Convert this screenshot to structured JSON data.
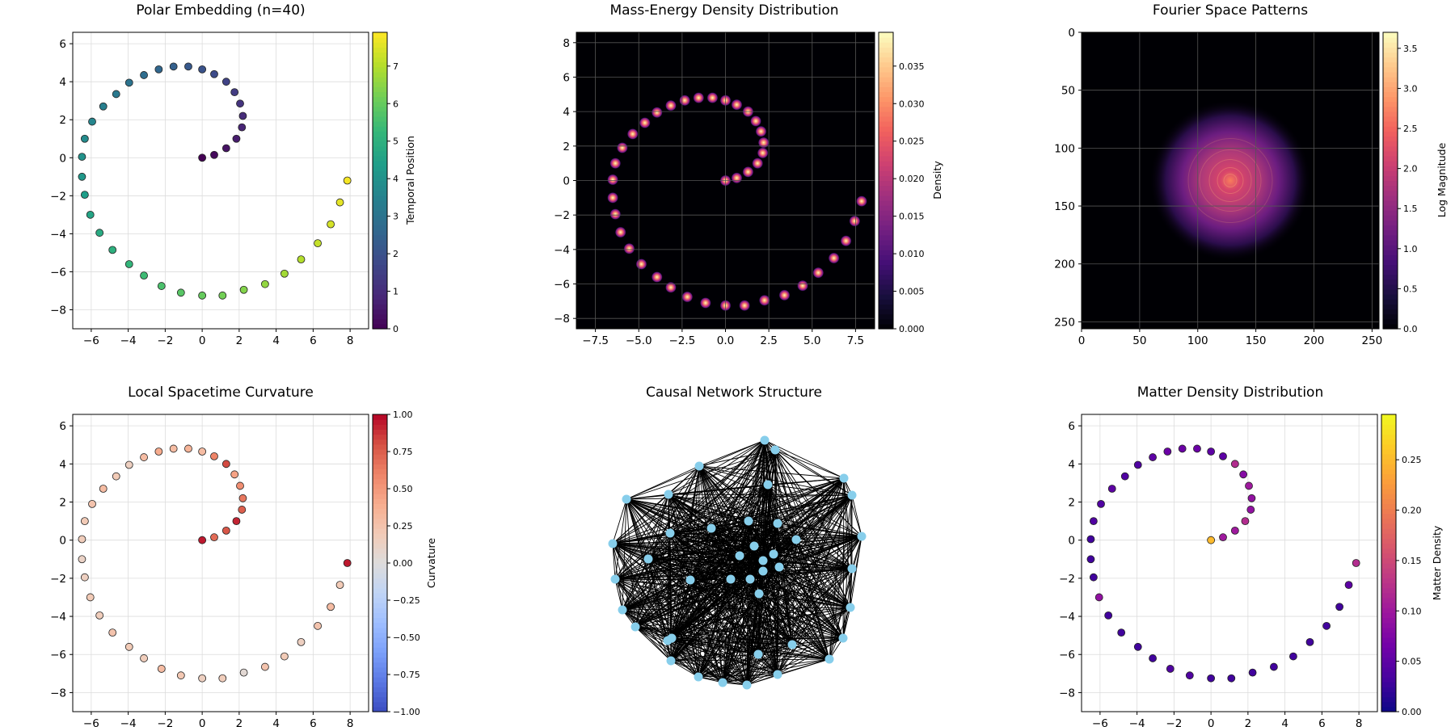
{
  "chart_data": [
    {
      "id": "polar",
      "type": "scatter",
      "title": "Polar Embedding (n=40)",
      "xlim": [
        -7,
        9
      ],
      "ylim": [
        -9,
        6.6
      ],
      "xticks": [
        -6,
        -4,
        -2,
        0,
        2,
        4,
        6,
        8
      ],
      "yticks": [
        -8,
        -6,
        -4,
        -2,
        0,
        2,
        4,
        6
      ],
      "grid": true,
      "colormap": "viridis",
      "colorbar": {
        "label": "Temporal Position",
        "range": [
          0,
          7.9
        ],
        "ticks": [
          0,
          1,
          2,
          3,
          4,
          5,
          6,
          7
        ]
      },
      "values_source": "temporal",
      "marker_size": 4.5
    },
    {
      "id": "massenergy",
      "type": "heatmap",
      "title": "Mass-Energy Density Distribution",
      "xlim": [
        -8.6,
        8.6
      ],
      "ylim": [
        -8.6,
        8.6
      ],
      "xticks": [
        -7.5,
        -5.0,
        -2.5,
        0.0,
        2.5,
        5.0,
        7.5
      ],
      "xtick_labels": [
        "−7.5",
        "−5.0",
        "−2.5",
        "0.0",
        "2.5",
        "5.0",
        "7.5"
      ],
      "yticks": [
        -8,
        -6,
        -4,
        -2,
        0,
        2,
        4,
        6,
        8
      ],
      "grid": true,
      "colormap": "magma",
      "colorbar": {
        "label": "Density",
        "range": [
          0,
          0.0395
        ],
        "ticks": [
          0,
          0.005,
          0.01,
          0.015,
          0.02,
          0.025,
          0.03,
          0.035
        ],
        "tick_labels": [
          "0.000",
          "0.005",
          "0.010",
          "0.015",
          "0.020",
          "0.025",
          "0.030",
          "0.035"
        ]
      }
    },
    {
      "id": "fourier",
      "type": "heatmap",
      "title": "Fourier Space Patterns",
      "xlim": [
        0,
        256
      ],
      "ylim": [
        256,
        0
      ],
      "xticks": [
        0,
        50,
        100,
        150,
        200,
        250
      ],
      "yticks": [
        0,
        50,
        100,
        150,
        200,
        250
      ],
      "grid": true,
      "colormap": "magma",
      "center": [
        128,
        128
      ],
      "colorbar": {
        "label": "Log Magnitude",
        "range": [
          0,
          3.7
        ],
        "ticks": [
          0,
          0.5,
          1.0,
          1.5,
          2.0,
          2.5,
          3.0,
          3.5
        ],
        "tick_labels": [
          "0.0",
          "0.5",
          "1.0",
          "1.5",
          "2.0",
          "2.5",
          "3.0",
          "3.5"
        ]
      }
    },
    {
      "id": "curvature",
      "type": "scatter",
      "title": "Local Spacetime Curvature",
      "xlim": [
        -7,
        9
      ],
      "ylim": [
        -9,
        6.6
      ],
      "xticks": [
        -6,
        -4,
        -2,
        0,
        2,
        4,
        6,
        8
      ],
      "yticks": [
        -8,
        -6,
        -4,
        -2,
        0,
        2,
        4,
        6
      ],
      "grid": true,
      "colormap": "coolwarm",
      "colorbar": {
        "label": "Curvature",
        "range": [
          -1,
          1
        ],
        "ticks": [
          -1,
          -0.75,
          -0.5,
          -0.25,
          0,
          0.25,
          0.5,
          0.75,
          1
        ],
        "tick_labels": [
          "−1.00",
          "−0.75",
          "−0.50",
          "−0.25",
          "0.00",
          "0.25",
          "0.50",
          "0.75",
          "1.00"
        ]
      },
      "values_source": "curvature",
      "marker_size": 4.5
    },
    {
      "id": "network",
      "type": "network",
      "title": "Causal Network Structure",
      "node_color": "#87ceeb",
      "edge_color": "#000000"
    },
    {
      "id": "matter",
      "type": "scatter",
      "title": "Matter Density Distribution",
      "xlim": [
        -7,
        9
      ],
      "ylim": [
        -9,
        6.6
      ],
      "xticks": [
        -6,
        -4,
        -2,
        0,
        2,
        4,
        6,
        8
      ],
      "yticks": [
        -8,
        -6,
        -4,
        -2,
        0,
        2,
        4,
        6
      ],
      "grid": true,
      "colormap": "plasma",
      "colorbar": {
        "label": "Matter Density",
        "range": [
          0,
          0.295
        ],
        "ticks": [
          0,
          0.05,
          0.1,
          0.15,
          0.2,
          0.25
        ],
        "tick_labels": [
          "0.00",
          "0.05",
          "0.10",
          "0.15",
          "0.20",
          "0.25"
        ]
      },
      "values_source": "matter",
      "marker_size": 4.5
    }
  ],
  "points": {
    "x": [
      0,
      0.65,
      1.3,
      1.85,
      2.15,
      2.2,
      2.05,
      1.75,
      1.3,
      0.65,
      0,
      -0.75,
      -1.55,
      -2.35,
      -3.15,
      -3.95,
      -4.65,
      -5.35,
      -5.95,
      -6.35,
      -6.5,
      -6.5,
      -6.35,
      -6.05,
      -5.55,
      -4.85,
      -3.95,
      -3.15,
      -2.2,
      -1.15,
      0,
      1.1,
      2.25,
      3.4,
      4.45,
      5.35,
      6.25,
      6.95,
      7.45,
      7.85
    ],
    "y": [
      0,
      0.15,
      0.5,
      1.0,
      1.6,
      2.2,
      2.85,
      3.45,
      4.0,
      4.4,
      4.65,
      4.8,
      4.8,
      4.65,
      4.35,
      3.95,
      3.35,
      2.7,
      1.9,
      1.0,
      0.05,
      -1.0,
      -1.95,
      -3.0,
      -3.95,
      -4.85,
      -5.6,
      -6.2,
      -6.75,
      -7.1,
      -7.25,
      -7.25,
      -6.95,
      -6.65,
      -6.1,
      -5.35,
      -4.5,
      -3.5,
      -2.35,
      -1.2
    ],
    "temporal": [
      0,
      0.2,
      0.4,
      0.6,
      0.8,
      1.0,
      1.2,
      1.4,
      1.6,
      1.8,
      2.0,
      2.2,
      2.4,
      2.6,
      2.8,
      3.0,
      3.2,
      3.4,
      3.6,
      3.8,
      4.0,
      4.2,
      4.4,
      4.6,
      4.8,
      5.0,
      5.2,
      5.4,
      5.6,
      5.8,
      6.0,
      6.2,
      6.4,
      6.6,
      6.8,
      7.0,
      7.2,
      7.4,
      7.6,
      7.8
    ],
    "curvature": [
      0.95,
      0.7,
      0.78,
      0.92,
      0.75,
      0.65,
      0.55,
      0.45,
      0.82,
      0.6,
      0.3,
      0.35,
      0.3,
      0.4,
      0.3,
      0.15,
      0.2,
      0.3,
      0.25,
      0.2,
      0.18,
      0.12,
      0.15,
      0.2,
      0.18,
      0.25,
      0.2,
      0.18,
      0.3,
      0.22,
      0.15,
      0.18,
      0.05,
      0.25,
      0.2,
      0.15,
      0.25,
      0.3,
      0.2,
      0.95
    ],
    "matter": [
      0.25,
      0.1,
      0.1,
      0.12,
      0.09,
      0.09,
      0.1,
      0.08,
      0.12,
      0.05,
      0.05,
      0.06,
      0.06,
      0.06,
      0.05,
      0.04,
      0.04,
      0.05,
      0.04,
      0.04,
      0.03,
      0.03,
      0.03,
      0.09,
      0.03,
      0.03,
      0.03,
      0.03,
      0.04,
      0.04,
      0.03,
      0.03,
      0.03,
      0.03,
      0.03,
      0.03,
      0.03,
      0.03,
      0.05,
      0.12
    ]
  },
  "network_nodes": [
    [
      946,
      545
    ],
    [
      959,
      557
    ],
    [
      865,
      577
    ],
    [
      827,
      612
    ],
    [
      829,
      660
    ],
    [
      802,
      692
    ],
    [
      854,
      718
    ],
    [
      904,
      717
    ],
    [
      939,
      735
    ],
    [
      985,
      668
    ],
    [
      1044,
      592
    ],
    [
      1054,
      613
    ],
    [
      1066,
      664
    ],
    [
      1054,
      704
    ],
    [
      1052,
      752
    ],
    [
      1043,
      790
    ],
    [
      1026,
      816
    ],
    [
      980,
      798
    ],
    [
      962,
      835
    ],
    [
      924,
      848
    ],
    [
      894,
      845
    ],
    [
      864,
      838
    ],
    [
      830,
      818
    ],
    [
      826,
      793
    ],
    [
      786,
      776
    ],
    [
      770,
      755
    ],
    [
      761,
      717
    ],
    [
      758,
      673
    ],
    [
      775,
      618
    ],
    [
      831,
      790
    ],
    [
      926,
      645
    ],
    [
      962,
      648
    ],
    [
      933,
      676
    ],
    [
      944,
      694
    ],
    [
      957,
      686
    ],
    [
      915,
      688
    ],
    [
      928,
      717
    ],
    [
      944,
      707
    ],
    [
      964,
      702
    ],
    [
      938,
      810
    ],
    [
      950,
      600
    ],
    [
      880,
      654
    ]
  ]
}
